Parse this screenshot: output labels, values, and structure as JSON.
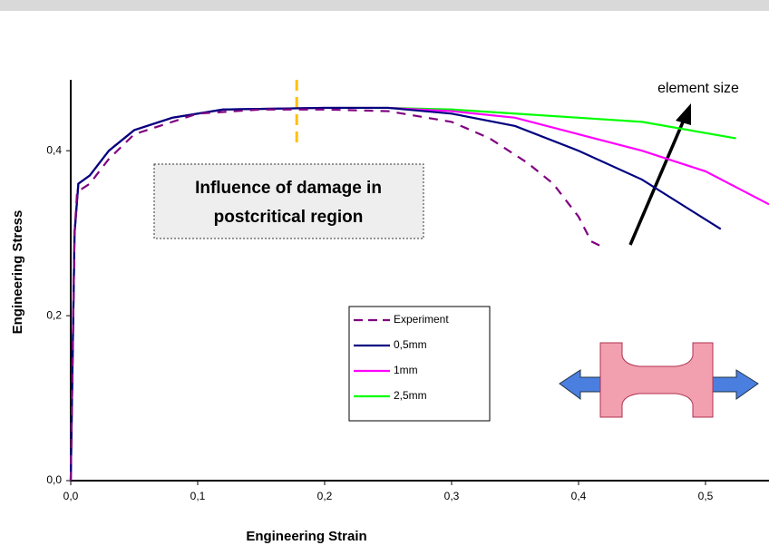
{
  "chart_data": {
    "type": "line",
    "xlabel": "Engineering Strain",
    "ylabel": "Engineering Stress",
    "annotation": [
      "Influence of damage in",
      "postcritical region"
    ],
    "arrow_label": "element size",
    "xlim": [
      0,
      0.55
    ],
    "ylim": [
      0,
      0.486
    ],
    "xticks": [
      {
        "value": 0,
        "label": "0,0"
      },
      {
        "value": 0.1,
        "label": "0,1"
      },
      {
        "value": 0.2,
        "label": "0,2"
      },
      {
        "value": 0.3,
        "label": "0,3"
      },
      {
        "value": 0.4,
        "label": "0,4"
      },
      {
        "value": 0.5,
        "label": "0,5"
      }
    ],
    "yticks": [
      {
        "value": 0,
        "label": "0,0"
      },
      {
        "value": 0.2,
        "label": "0,2"
      },
      {
        "value": 0.4,
        "label": "0,4"
      }
    ],
    "marker_line_x": 0.178,
    "series": [
      {
        "name": "Experiment",
        "color": "#800080",
        "dashed": true,
        "x": [
          0,
          0.003,
          0.005,
          0.015,
          0.03,
          0.05,
          0.1,
          0.15,
          0.2,
          0.25,
          0.3,
          0.33,
          0.36,
          0.38,
          0.4,
          0.41,
          0.418
        ],
        "values": [
          0,
          0.3,
          0.35,
          0.36,
          0.39,
          0.42,
          0.445,
          0.45,
          0.45,
          0.448,
          0.435,
          0.415,
          0.385,
          0.36,
          0.32,
          0.29,
          0.284
        ]
      },
      {
        "name": "0,5mm",
        "color": "#000080",
        "dashed": false,
        "x": [
          0,
          0.003,
          0.006,
          0.015,
          0.03,
          0.05,
          0.08,
          0.12,
          0.2,
          0.25,
          0.3,
          0.35,
          0.4,
          0.45,
          0.512
        ],
        "values": [
          0,
          0.3,
          0.36,
          0.37,
          0.4,
          0.425,
          0.44,
          0.45,
          0.452,
          0.452,
          0.445,
          0.43,
          0.4,
          0.365,
          0.305
        ]
      },
      {
        "name": "1mm",
        "color": "#ff00ff",
        "dashed": false,
        "x": [
          0,
          0.003,
          0.006,
          0.015,
          0.03,
          0.05,
          0.08,
          0.12,
          0.2,
          0.25,
          0.3,
          0.35,
          0.4,
          0.45,
          0.5,
          0.55
        ],
        "values": [
          0,
          0.3,
          0.36,
          0.37,
          0.4,
          0.425,
          0.44,
          0.45,
          0.452,
          0.452,
          0.448,
          0.44,
          0.42,
          0.4,
          0.375,
          0.335
        ]
      },
      {
        "name": "2,5mm",
        "color": "#00ff00",
        "dashed": false,
        "x": [
          0,
          0.003,
          0.006,
          0.015,
          0.03,
          0.05,
          0.08,
          0.12,
          0.2,
          0.25,
          0.3,
          0.4,
          0.45,
          0.524
        ],
        "values": [
          0,
          0.3,
          0.36,
          0.37,
          0.4,
          0.425,
          0.44,
          0.45,
          0.452,
          0.452,
          0.45,
          0.44,
          0.435,
          0.415
        ]
      }
    ]
  }
}
